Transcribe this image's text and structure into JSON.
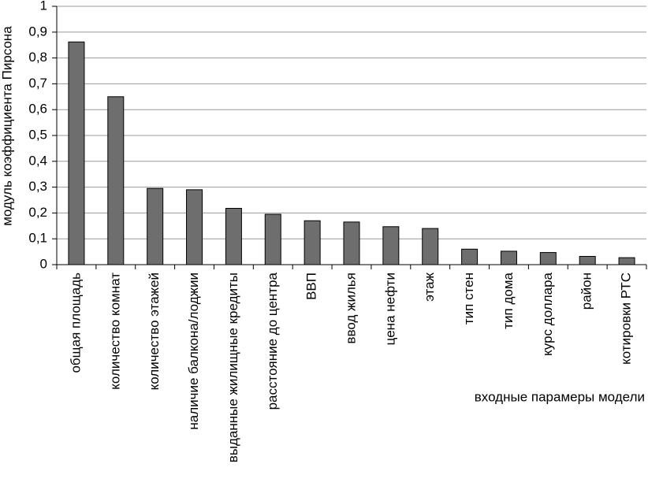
{
  "chart_data": {
    "type": "bar",
    "y_label": "модуль коэффициента Пирсона",
    "x_label": "входные парамеры модели",
    "categories": [
      "общая площадь",
      "количество комнат",
      "количество этажей",
      "наличие балкона/лоджии",
      "выданные жилищные кредиты",
      "расстояние до центра",
      "ВВП",
      "ввод жилья",
      "цена нефти",
      "этаж",
      "тип стен",
      "тип дома",
      "курс доллара",
      "район",
      "котировки РТС"
    ],
    "values": [
      0.862,
      0.65,
      0.295,
      0.29,
      0.218,
      0.195,
      0.17,
      0.165,
      0.147,
      0.14,
      0.06,
      0.052,
      0.047,
      0.032,
      0.027
    ],
    "color": "#6e6e6e",
    "ylim": [
      0,
      1
    ],
    "yticks": [
      0,
      {
        "value": 0.1,
        "label": "0,1"
      },
      {
        "value": 0.2,
        "label": "0,2"
      },
      {
        "value": 0.3,
        "label": "0,3"
      },
      {
        "value": 0.4,
        "label": "0,4"
      },
      {
        "value": 0.5,
        "label": "0,5"
      },
      {
        "value": 0.6,
        "label": "0,6"
      },
      {
        "value": 0.7,
        "label": "0,7"
      },
      {
        "value": 0.8,
        "label": "0,8"
      },
      {
        "value": 0.9,
        "label": "0,9"
      },
      1
    ],
    "grid": true
  }
}
